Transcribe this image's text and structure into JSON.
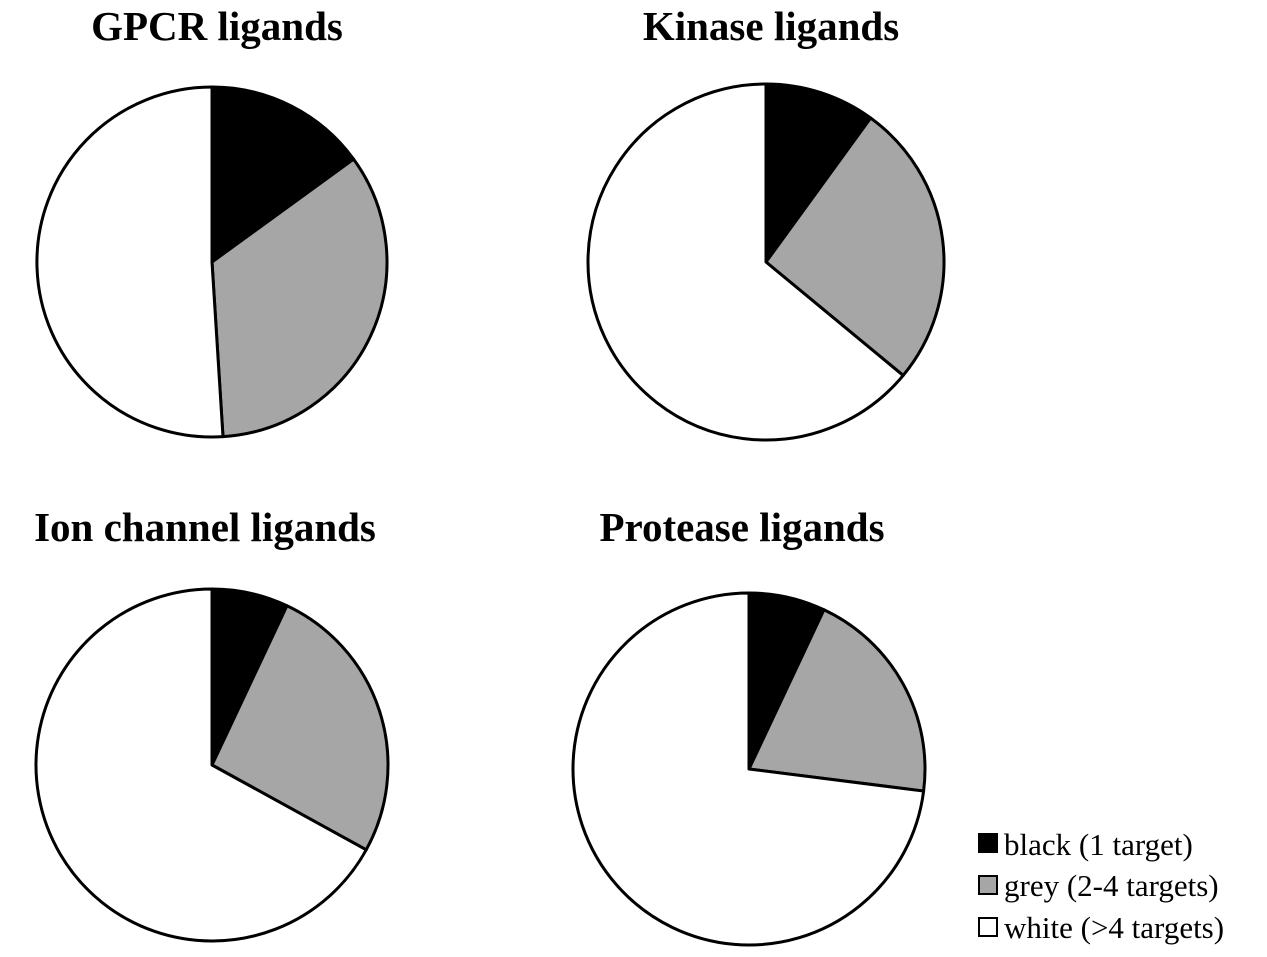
{
  "legend": {
    "placement": "bottom-right",
    "items": [
      {
        "label": "black (1 target)",
        "color": "#000000"
      },
      {
        "label": "grey (2-4 targets)",
        "color": "#a6a6a6"
      },
      {
        "label": "white (>4 targets)",
        "color": "#ffffff"
      }
    ]
  },
  "chart_data": [
    {
      "type": "pie",
      "title": "GPCR ligands",
      "categories": [
        "black (1 target)",
        "grey (2-4 targets)",
        "white (>4 targets)"
      ],
      "values": [
        15,
        34,
        51
      ],
      "colors": [
        "#000000",
        "#a6a6a6",
        "#ffffff"
      ]
    },
    {
      "type": "pie",
      "title": "Kinase ligands",
      "categories": [
        "black (1 target)",
        "grey (2-4 targets)",
        "white (>4 targets)"
      ],
      "values": [
        10,
        26,
        64
      ],
      "colors": [
        "#000000",
        "#a6a6a6",
        "#ffffff"
      ]
    },
    {
      "type": "pie",
      "title": "Ion channel ligands",
      "categories": [
        "black (1 target)",
        "grey (2-4 targets)",
        "white (>4 targets)"
      ],
      "values": [
        7,
        26,
        67
      ],
      "colors": [
        "#000000",
        "#a6a6a6",
        "#ffffff"
      ]
    },
    {
      "type": "pie",
      "title": "Protease ligands",
      "categories": [
        "black (1 target)",
        "grey (2-4 targets)",
        "white (>4 targets)"
      ],
      "values": [
        7,
        20,
        73
      ],
      "colors": [
        "#000000",
        "#a6a6a6",
        "#ffffff"
      ]
    }
  ]
}
